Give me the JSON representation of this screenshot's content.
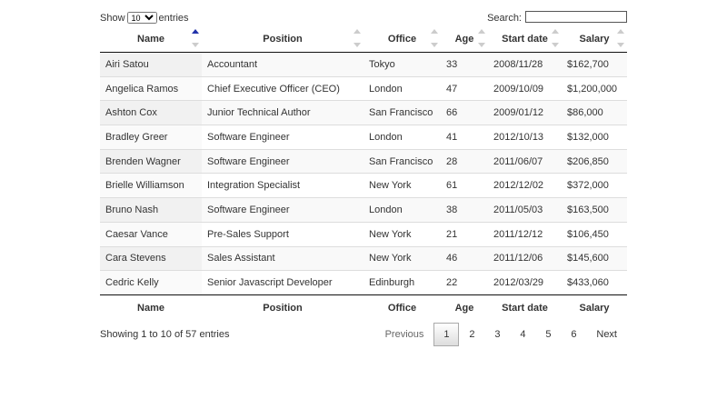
{
  "controls": {
    "show_label": "Show",
    "length_value": "10",
    "entries_label": "entries",
    "search_label": "Search:"
  },
  "table": {
    "columns": [
      "Name",
      "Position",
      "Office",
      "Age",
      "Start date",
      "Salary"
    ],
    "rows": [
      [
        "Airi Satou",
        "Accountant",
        "Tokyo",
        33,
        "2008/11/28",
        "$162,700"
      ],
      [
        "Angelica Ramos",
        "Chief Executive Officer (CEO)",
        "London",
        47,
        "2009/10/09",
        "$1,200,000"
      ],
      [
        "Ashton Cox",
        "Junior Technical Author",
        "San Francisco",
        66,
        "2009/01/12",
        "$86,000"
      ],
      [
        "Bradley Greer",
        "Software Engineer",
        "London",
        41,
        "2012/10/13",
        "$132,000"
      ],
      [
        "Brenden Wagner",
        "Software Engineer",
        "San Francisco",
        28,
        "2011/06/07",
        "$206,850"
      ],
      [
        "Brielle Williamson",
        "Integration Specialist",
        "New York",
        61,
        "2012/12/02",
        "$372,000"
      ],
      [
        "Bruno Nash",
        "Software Engineer",
        "London",
        38,
        "2011/05/03",
        "$163,500"
      ],
      [
        "Caesar Vance",
        "Pre-Sales Support",
        "New York",
        21,
        "2011/12/12",
        "$106,450"
      ],
      [
        "Cara Stevens",
        "Sales Assistant",
        "New York",
        46,
        "2011/12/06",
        "$145,600"
      ],
      [
        "Cedric Kelly",
        "Senior Javascript Developer",
        "Edinburgh",
        22,
        "2012/03/29",
        "$433,060"
      ]
    ]
  },
  "info": "Showing 1 to 10 of 57 entries",
  "pagination": {
    "previous": "Previous",
    "pages": [
      "1",
      "2",
      "3",
      "4",
      "5",
      "6"
    ],
    "next": "Next"
  }
}
